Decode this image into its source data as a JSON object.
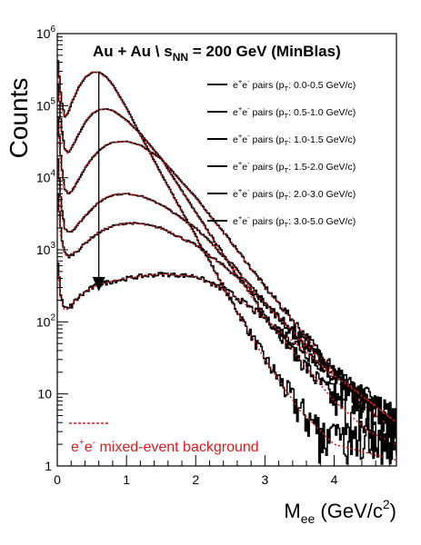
{
  "chart_data": {
    "type": "line",
    "title": "Au + Au   \\ s",
    "title_sub": "NN",
    "title_tail": " = 200 GeV (MinBlas)",
    "xlabel": "M",
    "xlabel_sub": "ee",
    "xlabel_tail": " (GeV/c",
    "xlabel_sup": "2",
    "xlabel_close": ")",
    "ylabel": "Counts",
    "y_scale": "log",
    "xlim": [
      0,
      4.9
    ],
    "ylim": [
      1,
      1000000
    ],
    "x_ticks": [
      "0",
      "1",
      "2",
      "3",
      "4"
    ],
    "y_ticks": [
      {
        "base": "1",
        "exp": ""
      },
      {
        "base": "10",
        "exp": ""
      },
      {
        "base": "10",
        "exp": "2"
      },
      {
        "base": "10",
        "exp": "3"
      },
      {
        "base": "10",
        "exp": "4"
      },
      {
        "base": "10",
        "exp": "5"
      },
      {
        "base": "10",
        "exp": "6"
      }
    ],
    "legend_position": "top-right",
    "data_color": "#000000",
    "background_color": "#e31a1c",
    "background_label": "e+e- mixed-event background",
    "background_label_parts": {
      "a": "e",
      "b": "+",
      "c": "e",
      "d": "-",
      "e": " mixed-event background"
    },
    "arrow": {
      "x": 0.6,
      "y_from": 300000,
      "y_to": 280
    },
    "series": [
      {
        "name": "e+e- pairs (pT: 0.0-0.5 GeV/c)",
        "label_parts": [
          "e",
          "+",
          "e",
          "-",
          " pairs (p",
          "T",
          ": 0.0-0.5 GeV/c)"
        ],
        "x": [
          0.0,
          0.05,
          0.1,
          0.15,
          0.2,
          0.3,
          0.4,
          0.5,
          0.6,
          0.7,
          0.8,
          1.0,
          1.2,
          1.5,
          2.0,
          2.5,
          3.0,
          3.5,
          4.0,
          4.5,
          4.9
        ],
        "y": [
          420000,
          120000,
          70000,
          80000,
          110000,
          180000,
          250000,
          290000,
          290000,
          250000,
          190000,
          90000,
          38000,
          11000,
          1500,
          200,
          30,
          6,
          2,
          1.5,
          1.2
        ]
      },
      {
        "name": "e+e- pairs (pT: 0.5-1.0 GeV/c)",
        "label_parts": [
          "e",
          "+",
          "e",
          "-",
          " pairs (p",
          "T",
          ": 0.5-1.0 GeV/c)"
        ],
        "x": [
          0.0,
          0.05,
          0.1,
          0.15,
          0.2,
          0.3,
          0.4,
          0.5,
          0.6,
          0.7,
          0.8,
          1.0,
          1.2,
          1.5,
          2.0,
          2.5,
          3.0,
          3.5,
          4.0,
          4.5,
          4.9
        ],
        "y": [
          200000,
          50000,
          25000,
          22000,
          26000,
          40000,
          60000,
          78000,
          88000,
          90000,
          85000,
          62000,
          40000,
          18000,
          3200,
          600,
          120,
          30,
          8,
          3,
          2
        ]
      },
      {
        "name": "e+e- pairs (pT: 1.0-1.5 GeV/c)",
        "label_parts": [
          "e",
          "+",
          "e",
          "-",
          " pairs (p",
          "T",
          ": 1.0-1.5 GeV/c)"
        ],
        "x": [
          0.0,
          0.05,
          0.1,
          0.15,
          0.2,
          0.3,
          0.4,
          0.5,
          0.6,
          0.7,
          0.8,
          1.0,
          1.2,
          1.5,
          2.0,
          2.5,
          3.0,
          3.5,
          4.0,
          4.5,
          4.9
        ],
        "y": [
          70000,
          15000,
          7000,
          6000,
          6500,
          9500,
          14000,
          19000,
          24000,
          28500,
          31000,
          32000,
          28000,
          18000,
          5200,
          1300,
          300,
          80,
          20,
          6,
          3
        ]
      },
      {
        "name": "e+e- pairs (pT: 1.5-2.0 GeV/c)",
        "label_parts": [
          "e",
          "+",
          "e",
          "-",
          " pairs (p",
          "T",
          ": 1.5-2.0 GeV/c)"
        ],
        "x": [
          0.0,
          0.05,
          0.1,
          0.15,
          0.2,
          0.3,
          0.4,
          0.5,
          0.6,
          0.7,
          0.8,
          1.0,
          1.2,
          1.5,
          2.0,
          2.5,
          3.0,
          3.5,
          4.0,
          4.5,
          4.9
        ],
        "y": [
          18000,
          4000,
          2000,
          1800,
          1800,
          2300,
          3000,
          3800,
          4600,
          5300,
          5800,
          6000,
          5600,
          4200,
          2000,
          650,
          180,
          55,
          16,
          6,
          3
        ]
      },
      {
        "name": "e+e- pairs (pT: 2.0-3.0 GeV/c)",
        "label_parts": [
          "e",
          "+",
          "e",
          "-",
          " pairs (p",
          "T",
          ": 2.0-3.0 GeV/c)"
        ],
        "x": [
          0.0,
          0.05,
          0.1,
          0.15,
          0.2,
          0.3,
          0.4,
          0.5,
          0.6,
          0.7,
          0.8,
          1.0,
          1.2,
          1.5,
          2.0,
          2.5,
          3.0,
          3.5,
          4.0,
          4.5,
          4.9
        ],
        "y": [
          6000,
          1500,
          900,
          800,
          850,
          1000,
          1250,
          1500,
          1750,
          1950,
          2150,
          2350,
          2300,
          2000,
          1150,
          500,
          180,
          60,
          20,
          8,
          4
        ]
      },
      {
        "name": "e+e- pairs (pT: 3.0-5.0 GeV/c)",
        "label_parts": [
          "e",
          "+",
          "e",
          "-",
          " pairs (p",
          "T",
          ": 3.0-5.0 GeV/c)"
        ],
        "x": [
          0.0,
          0.05,
          0.1,
          0.15,
          0.2,
          0.3,
          0.4,
          0.5,
          0.6,
          0.7,
          0.8,
          1.0,
          1.2,
          1.5,
          2.0,
          2.5,
          3.0,
          3.5,
          4.0,
          4.5,
          4.9
        ],
        "y": [
          650,
          200,
          150,
          150,
          170,
          220,
          260,
          300,
          330,
          350,
          370,
          400,
          430,
          460,
          430,
          250,
          110,
          45,
          18,
          8,
          4
        ]
      }
    ]
  }
}
